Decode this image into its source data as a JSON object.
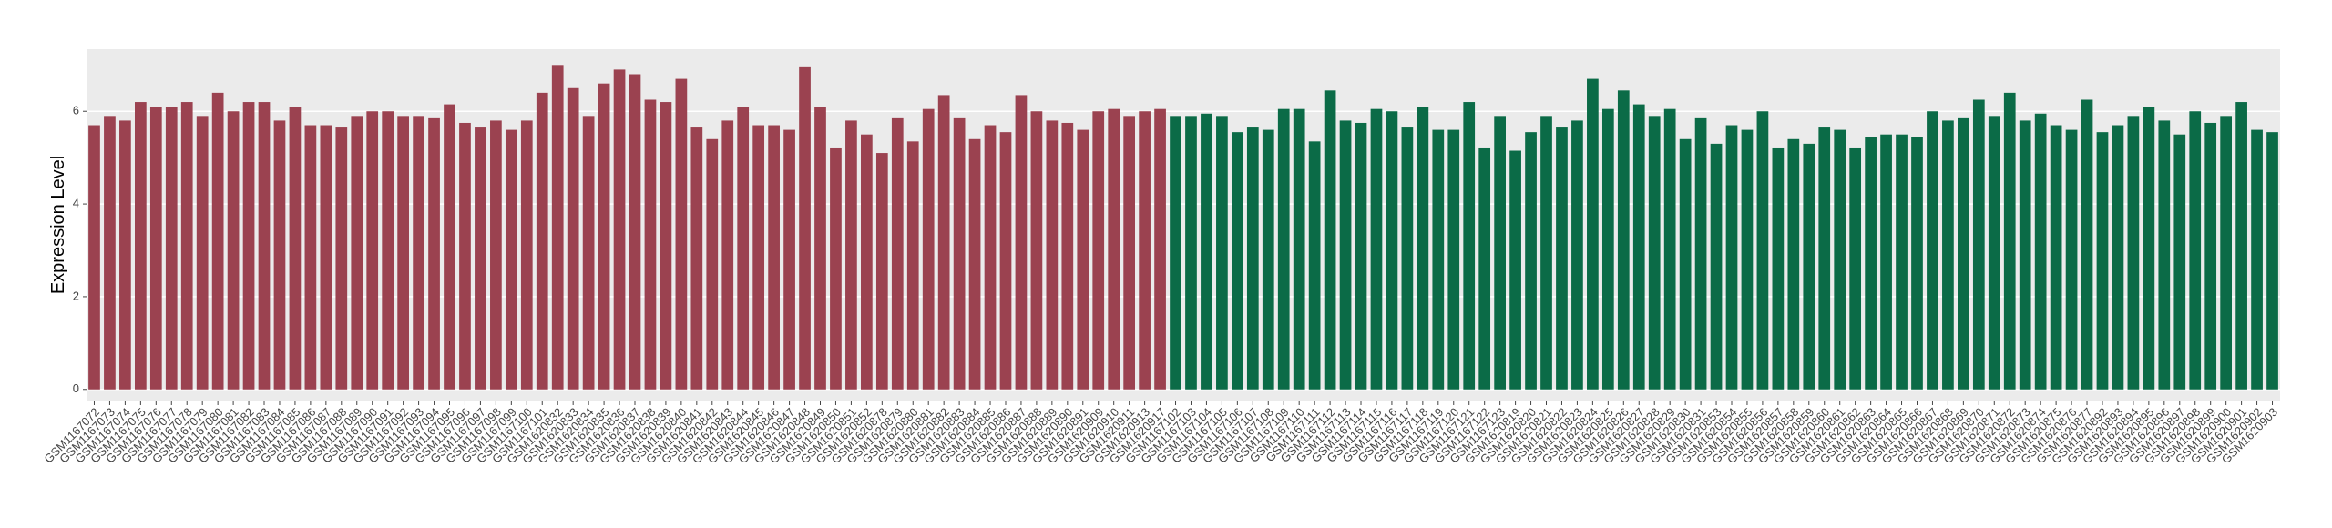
{
  "chart_data": {
    "type": "bar",
    "y_label": "Expression Level",
    "ylim": [
      -0.26,
      7.34
    ],
    "yticks": [
      0,
      2,
      4,
      6
    ],
    "grid": true,
    "series": [
      {
        "color": "#9b4250",
        "categories": [
          "GSM1167072",
          "GSM1167073",
          "GSM1167074",
          "GSM1167075",
          "GSM1167076",
          "GSM1167077",
          "GSM1167078",
          "GSM1167079",
          "GSM1167080",
          "GSM1167081",
          "GSM1167082",
          "GSM1167083",
          "GSM1167084",
          "GSM1167085",
          "GSM1167086",
          "GSM1167087",
          "GSM1167088",
          "GSM1167089",
          "GSM1167090",
          "GSM1167091",
          "GSM1167092",
          "GSM1167093",
          "GSM1167094",
          "GSM1167095",
          "GSM1167096",
          "GSM1167097",
          "GSM1167098",
          "GSM1167099",
          "GSM1167100",
          "GSM1167101",
          "GSM1620832",
          "GSM1620833",
          "GSM1620834",
          "GSM1620835",
          "GSM1620836",
          "GSM1620837",
          "GSM1620838",
          "GSM1620839",
          "GSM1620840",
          "GSM1620841",
          "GSM1620842",
          "GSM1620843",
          "GSM1620844",
          "GSM1620845",
          "GSM1620846",
          "GSM1620847",
          "GSM1620848",
          "GSM1620849",
          "GSM1620850",
          "GSM1620851",
          "GSM1620852",
          "GSM1620878",
          "GSM1620879",
          "GSM1620880",
          "GSM1620881",
          "GSM1620882",
          "GSM1620883",
          "GSM1620884",
          "GSM1620885",
          "GSM1620886",
          "GSM1620887",
          "GSM1620888",
          "GSM1620889",
          "GSM1620890",
          "GSM1620891",
          "GSM1620909",
          "GSM1620910",
          "GSM1620911",
          "GSM1620913",
          "GSM1620917"
        ],
        "values": [
          5.7,
          5.9,
          5.8,
          6.2,
          6.1,
          6.1,
          6.2,
          5.9,
          6.4,
          6.0,
          6.2,
          6.2,
          5.8,
          6.1,
          5.7,
          5.7,
          5.65,
          5.9,
          6.0,
          6.0,
          5.9,
          5.9,
          5.85,
          6.15,
          5.75,
          5.65,
          5.8,
          5.6,
          5.8,
          6.4,
          7.0,
          6.5,
          5.9,
          6.6,
          6.9,
          6.8,
          6.25,
          6.2,
          6.7,
          5.65,
          5.4,
          5.8,
          6.1,
          5.7,
          5.7,
          5.6,
          6.95,
          6.1,
          5.2,
          5.8,
          5.5,
          5.1,
          5.85,
          5.35,
          6.05,
          6.35,
          5.85,
          5.4,
          5.7,
          5.55,
          6.35,
          6.0,
          5.8,
          5.75,
          5.6,
          6.0,
          6.05,
          5.9,
          6.0,
          6.05
        ]
      },
      {
        "color": "#0b6b47",
        "categories": [
          "GSM1167102",
          "GSM1167103",
          "GSM1167104",
          "GSM1167105",
          "GSM1167106",
          "GSM1167107",
          "GSM1167108",
          "GSM1167109",
          "GSM1167110",
          "GSM1167111",
          "GSM1167112",
          "GSM1167113",
          "GSM1167114",
          "GSM1167115",
          "GSM1167116",
          "GSM1167117",
          "GSM1167118",
          "GSM1167119",
          "GSM1167120",
          "GSM1167121",
          "GSM1167122",
          "GSM1167123",
          "GSM1620819",
          "GSM1620820",
          "GSM1620821",
          "GSM1620822",
          "GSM1620823",
          "GSM1620824",
          "GSM1620825",
          "GSM1620826",
          "GSM1620827",
          "GSM1620828",
          "GSM1620829",
          "GSM1620830",
          "GSM1620831",
          "GSM1620853",
          "GSM1620854",
          "GSM1620855",
          "GSM1620856",
          "GSM1620857",
          "GSM1620858",
          "GSM1620859",
          "GSM1620860",
          "GSM1620861",
          "GSM1620862",
          "GSM1620863",
          "GSM1620864",
          "GSM1620865",
          "GSM1620866",
          "GSM1620867",
          "GSM1620868",
          "GSM1620869",
          "GSM1620870",
          "GSM1620871",
          "GSM1620872",
          "GSM1620873",
          "GSM1620874",
          "GSM1620875",
          "GSM1620876",
          "GSM1620877",
          "GSM1620892",
          "GSM1620893",
          "GSM1620894",
          "GSM1620895",
          "GSM1620896",
          "GSM1620897",
          "GSM1620898",
          "GSM1620899",
          "GSM1620900",
          "GSM1620901",
          "GSM1620902",
          "GSM1620903"
        ],
        "values": [
          5.9,
          5.9,
          5.95,
          5.9,
          5.55,
          5.65,
          5.6,
          6.05,
          6.05,
          5.35,
          6.45,
          5.8,
          5.75,
          6.05,
          6.0,
          5.65,
          6.1,
          5.6,
          5.6,
          6.2,
          5.2,
          5.9,
          5.15,
          5.55,
          5.9,
          5.65,
          5.8,
          6.7,
          6.05,
          6.45,
          6.15,
          5.9,
          6.05,
          5.4,
          5.85,
          5.3,
          5.7,
          5.6,
          6.0,
          5.2,
          5.4,
          5.3,
          5.65,
          5.6,
          5.2,
          5.45,
          5.5,
          5.5,
          5.45,
          6.0,
          5.8,
          5.85,
          6.25,
          5.9,
          6.4,
          5.8,
          5.95,
          5.7,
          5.6,
          6.25,
          5.55,
          5.7,
          5.9,
          6.1,
          5.8,
          5.5,
          6.0,
          5.75,
          5.9,
          6.2,
          5.6,
          5.55
        ]
      }
    ]
  }
}
